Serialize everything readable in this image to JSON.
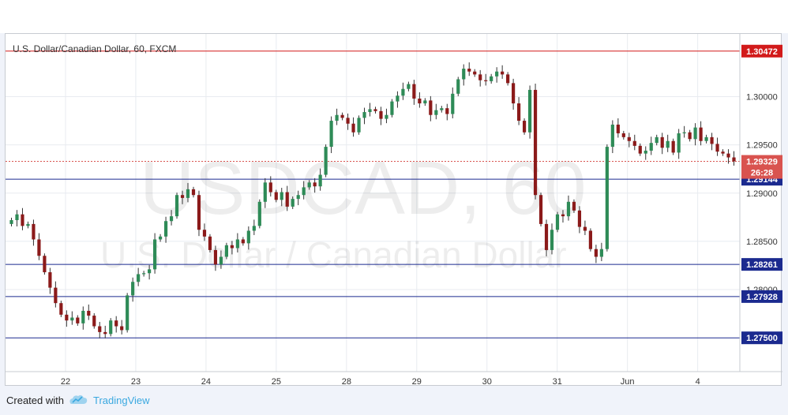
{
  "chart_data": {
    "type": "candlestick",
    "title": "U.S. Dollar/Canadian Dollar, 60, FXCM",
    "watermark": {
      "symbol": "USDCAD, 60",
      "name": "U.S. Dollar / Canadian Dollar"
    },
    "x_ticks": [
      "22",
      "23",
      "24",
      "25",
      "28",
      "29",
      "30",
      "31",
      "Jun",
      "4"
    ],
    "y_ticks": [
      "1.28000",
      "1.28500",
      "1.29000",
      "1.29500",
      "1.30000"
    ],
    "ylim": [
      1.2715,
      1.3065
    ],
    "horizontal_levels": [
      {
        "value": 1.30472,
        "label": "1.30472",
        "color": "#d21a1a"
      },
      {
        "value": 1.29144,
        "label": "1.29144",
        "color": "#1b2a8f"
      },
      {
        "value": 1.28261,
        "label": "1.28261",
        "color": "#1b2a8f"
      },
      {
        "value": 1.27928,
        "label": "1.27928",
        "color": "#1b2a8f"
      },
      {
        "value": 1.275,
        "label": "1.27500",
        "color": "#1b2a8f"
      }
    ],
    "current_price": {
      "value": 1.29329,
      "label": "1.29329",
      "countdown": "26:28",
      "color": "#d9534f"
    },
    "closes": [
      1.2872,
      1.2878,
      1.2866,
      1.2868,
      1.2852,
      1.2835,
      1.2818,
      1.2802,
      1.2786,
      1.2774,
      1.2768,
      1.2771,
      1.2765,
      1.2778,
      1.2773,
      1.2762,
      1.2756,
      1.2754,
      1.2768,
      1.2762,
      1.2758,
      1.2794,
      1.2808,
      1.2816,
      1.2817,
      1.2821,
      1.2852,
      1.2855,
      1.2871,
      1.2876,
      1.2898,
      1.2895,
      1.2904,
      1.2898,
      1.2862,
      1.2855,
      1.2841,
      1.2826,
      1.2834,
      1.2846,
      1.2843,
      1.2852,
      1.2848,
      1.2861,
      1.2866,
      1.2891,
      1.2911,
      1.2901,
      1.2893,
      1.2901,
      1.2886,
      1.2894,
      1.2898,
      1.2906,
      1.2911,
      1.2907,
      1.2919,
      1.2948,
      1.2975,
      1.2981,
      1.2978,
      1.2972,
      1.2963,
      1.2978,
      1.2984,
      1.2987,
      1.2985,
      1.2977,
      1.2981,
      1.2995,
      1.3001,
      1.3008,
      1.3013,
      1.2998,
      1.2993,
      1.2996,
      1.2981,
      1.2986,
      1.2988,
      1.2982,
      1.3003,
      1.3018,
      1.3029,
      1.3026,
      1.3023,
      1.3017,
      1.3016,
      1.3021,
      1.3026,
      1.3023,
      1.3014,
      1.2993,
      1.2975,
      1.2963,
      1.3007,
      1.2898,
      1.2868,
      1.2841,
      1.2862,
      1.2878,
      1.2876,
      1.2891,
      1.2882,
      1.2865,
      1.2861,
      1.2842,
      1.2834,
      1.2842,
      1.2948,
      1.2971,
      1.2962,
      1.2958,
      1.2954,
      1.2949,
      1.2941,
      1.2944,
      1.2952,
      1.2958,
      1.2947,
      1.2954,
      1.2942,
      1.2962,
      1.2963,
      1.2956,
      1.2968,
      1.2954,
      1.2958,
      1.2951,
      1.2943,
      1.2941,
      1.2937,
      1.2933
    ]
  },
  "footer": {
    "created_with": "Created with",
    "brand": "TradingView"
  },
  "colors": {
    "up": "#2e8b57",
    "down": "#8b1a1a",
    "grid": "#e8ebf0",
    "axis_text": "#333333"
  }
}
